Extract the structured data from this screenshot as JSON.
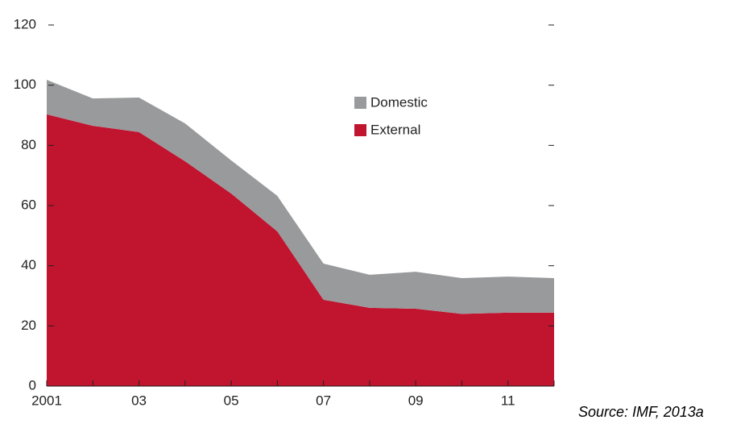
{
  "chart_data": {
    "type": "stacked-area",
    "x": [
      2001,
      2002,
      2003,
      2004,
      2005,
      2006,
      2007,
      2008,
      2009,
      2010,
      2011,
      2012
    ],
    "series": [
      {
        "name": "External",
        "color": "#c0142f",
        "values": [
          90.3,
          86.5,
          84.4,
          74.7,
          64,
          51.4,
          28.7,
          26,
          25.7,
          24,
          24.4,
          24.4
        ]
      },
      {
        "name": "Domestic",
        "color": "#999a9c",
        "values": [
          11.5,
          9.1,
          11.5,
          12.6,
          11,
          11.8,
          12,
          11,
          12.3,
          11.9,
          12,
          11.5
        ]
      }
    ],
    "xlim": [
      2001,
      2012
    ],
    "xticks": [
      2001,
      {
        "value": 2003,
        "label": "03"
      },
      {
        "value": 2005,
        "label": "05"
      },
      {
        "value": 2007,
        "label": "07"
      },
      {
        "value": 2009,
        "label": "09"
      },
      {
        "value": 2011,
        "label": "11"
      }
    ],
    "ylim": [
      0,
      120
    ],
    "yticks": [
      0,
      20,
      40,
      60,
      80,
      100,
      120
    ],
    "legend": "upper-right",
    "source": "Source: IMF, 2013a"
  }
}
